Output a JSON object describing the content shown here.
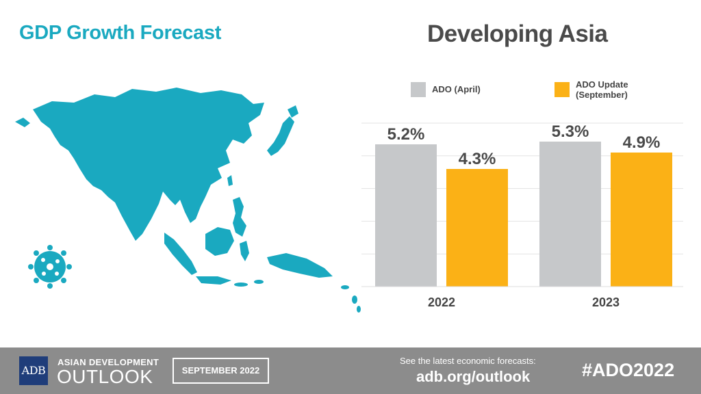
{
  "header": {
    "left_title": "GDP Growth Forecast",
    "right_title": "Developing Asia"
  },
  "colors": {
    "accent": "#1aa9c0",
    "april_bar": "#c6c8ca",
    "update_bar": "#fbb116",
    "footer": "#8c8c8c",
    "adb_blue": "#1f3d7a"
  },
  "icons": {
    "map": "asia-map-icon",
    "virus": "virus-icon"
  },
  "chart_data": {
    "type": "bar",
    "title": "Developing Asia",
    "categories": [
      "2022",
      "2023"
    ],
    "series": [
      {
        "name": "ADO (April)",
        "values": [
          5.2,
          5.3
        ],
        "labels": [
          "5.2%",
          "5.3%"
        ]
      },
      {
        "name": "ADO Update\n(September)",
        "values": [
          4.3,
          4.9
        ],
        "labels": [
          "4.3%",
          "4.9%"
        ]
      }
    ],
    "xlabel": "",
    "ylabel": "",
    "ylim": [
      0,
      5.6
    ],
    "grid": true,
    "legend": "top"
  },
  "footer": {
    "logo_text": "ADB",
    "brand_line1": "ASIAN DEVELOPMENT",
    "brand_line2": "OUTLOOK",
    "edition": "SEPTEMBER 2022",
    "cta_line1": "See the latest economic forecasts:",
    "cta_line2": "adb.org/outlook",
    "hashtag": "#ADO2022"
  }
}
